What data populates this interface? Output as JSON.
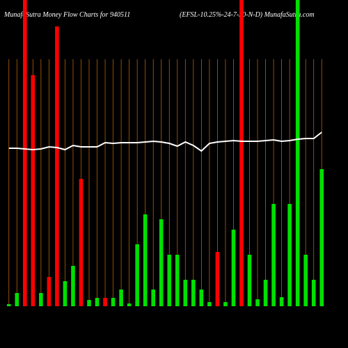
{
  "chart_data": {
    "type": "bar",
    "title": "MunafaSutra  Money Flow  Charts for 940511",
    "subtitle": "(EFSL-10.25%-24-7-30-N-D) MunafaSutra.com",
    "categories": [
      null,
      null,
      null,
      null,
      null,
      null,
      null,
      null,
      null,
      null,
      null,
      null,
      null,
      null,
      null,
      null,
      null,
      null,
      null,
      null,
      null,
      null,
      null,
      null,
      null,
      null,
      null,
      null,
      null,
      null,
      null,
      null,
      null,
      null,
      null,
      null,
      null,
      null,
      null,
      null
    ],
    "values": [
      3,
      19,
      440,
      332,
      19,
      42,
      402,
      36,
      58,
      183,
      9,
      12,
      12,
      12,
      24,
      4,
      89,
      132,
      24,
      125,
      74,
      74,
      38,
      38,
      24,
      6,
      78,
      6,
      110,
      440,
      74,
      10,
      38,
      147,
      13,
      147,
      440,
      74,
      38,
      197
    ],
    "bar_colors": [
      "#00e000",
      "#00e000",
      "#ff0000",
      "#ff0000",
      "#00e000",
      "#ff0000",
      "#ff0000",
      "#00e000",
      "#00e000",
      "#ff0000",
      "#00e000",
      "#00e000",
      "#ff0000",
      "#00e000",
      "#00e000",
      "#00e000",
      "#00e000",
      "#00e000",
      "#00e000",
      "#00e000",
      "#00e000",
      "#00e000",
      "#00e000",
      "#00e000",
      "#00e000",
      "#00e000",
      "#ff0000",
      "#00e000",
      "#00e000",
      "#ff0000",
      "#00e000",
      "#00e000",
      "#00e000",
      "#00e000",
      "#00e000",
      "#00e000",
      "#00e000",
      "#00e000",
      "#00e000",
      "#00e000"
    ],
    "line": {
      "color": "#ffffff",
      "values": [
        227,
        227,
        226,
        225,
        226,
        229,
        228,
        225,
        231,
        229,
        229,
        229,
        235,
        234,
        235,
        235,
        235,
        236,
        237,
        236,
        234,
        230,
        236,
        231,
        223,
        234,
        236,
        237,
        238,
        237,
        237,
        237,
        238,
        239,
        237,
        238,
        240,
        241,
        241,
        250
      ]
    },
    "ylim": [
      0,
      440
    ],
    "grid": true,
    "grid_color": "#b8600a"
  }
}
